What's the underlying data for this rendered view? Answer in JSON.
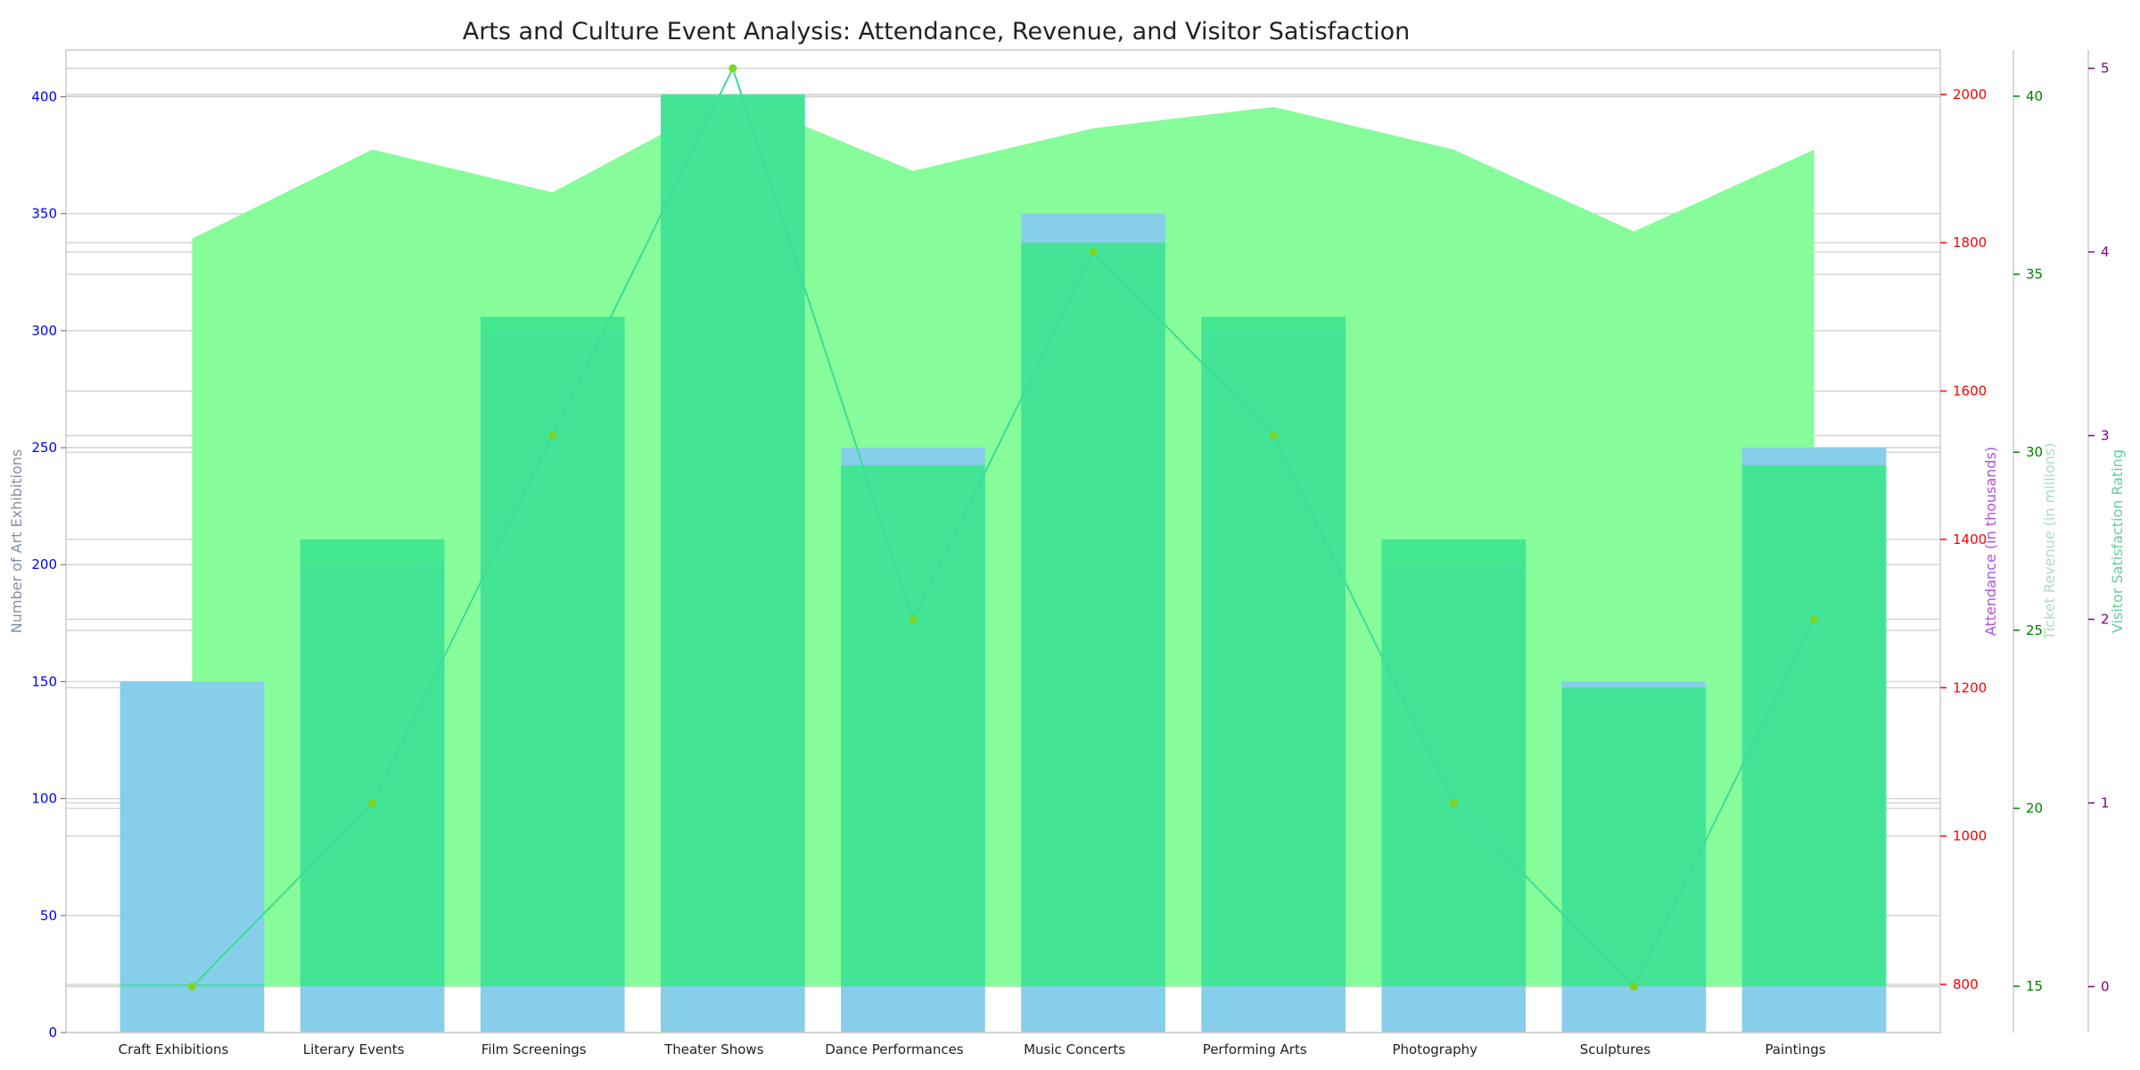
{
  "chart_data": {
    "type": "bar",
    "title": "Arts and Culture Event Analysis: Attendance, Revenue, and Visitor Satisfaction",
    "categories": [
      "Craft Exhibitions",
      "Literary Events",
      "Film Screenings",
      "Theater Shows",
      "Dance Performances",
      "Music Concerts",
      "Performing Arts",
      "Photography",
      "Sculptures",
      "Paintings"
    ],
    "series": [
      {
        "name": "Number of Art Exhibitions",
        "type": "bar",
        "axis": "left",
        "color": "#87ceeb",
        "values": [
          150,
          200,
          300,
          400,
          250,
          350,
          300,
          200,
          150,
          250
        ]
      },
      {
        "name": "Attendance (in thousands)",
        "type": "bar",
        "axis": "right1",
        "color": "#3ee68f",
        "values": [
          800,
          1400,
          1700,
          2000,
          1500,
          1800,
          1700,
          1400,
          1200,
          1500
        ]
      },
      {
        "name": "Ticket Revenue (in millions)",
        "type": "area",
        "axis": "right2",
        "color": "#86fc9a",
        "values": [
          36,
          38.5,
          37.3,
          40,
          37.9,
          39.1,
          39.7,
          38.5,
          36.2,
          38.5
        ]
      },
      {
        "name": "Visitor Satisfaction Rating",
        "type": "line",
        "axis": "right3",
        "color": "#3ddc97",
        "marker_color": "#7ed321",
        "values": [
          0,
          1,
          3,
          5,
          2,
          4,
          3,
          1,
          0,
          2
        ]
      }
    ],
    "axes": {
      "left": {
        "label": "Number of Art Exhibitions",
        "ylim": [
          0,
          420
        ],
        "ticks": [
          "0",
          "50",
          "100",
          "150",
          "200",
          "250",
          "300",
          "350",
          "400"
        ],
        "tick_color": "#0000ff",
        "label_color": "#7f8fa6"
      },
      "right1": {
        "label": "Attendance (in thousands)",
        "ylim": [
          735,
          2060
        ],
        "ticks": [
          "800",
          "1000",
          "1200",
          "1400",
          "1600",
          "1800",
          "2000"
        ],
        "tick_color": "#ff0000",
        "label_color": "#b050e0"
      },
      "right2": {
        "label": "Ticket Revenue (in millions)",
        "ylim": [
          13.7,
          41.3
        ],
        "ticks": [
          "15",
          "20",
          "25",
          "30",
          "35",
          "40"
        ],
        "tick_color": "#008000",
        "label_color": "#a8e0c0"
      },
      "right3": {
        "label": "Visitor Satisfaction Rating",
        "ylim": [
          -0.25,
          5.1
        ],
        "ticks": [
          "0",
          "1",
          "2",
          "3",
          "4",
          "5"
        ],
        "tick_color": "#800080",
        "label_color": "#66cc99"
      }
    },
    "grid": true,
    "legend": "none"
  }
}
